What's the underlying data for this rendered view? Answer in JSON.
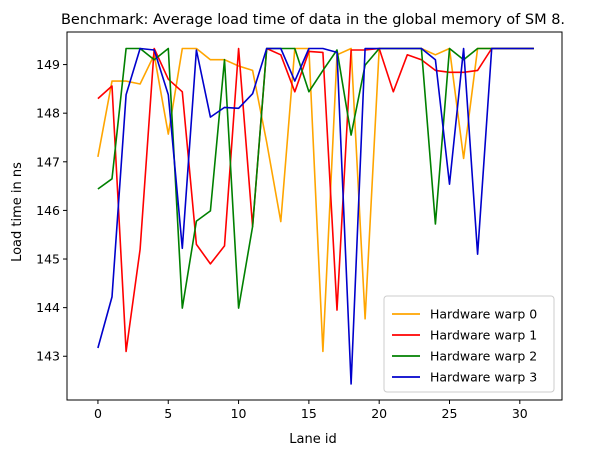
{
  "chart_data": {
    "type": "line",
    "title": "Benchmark: Average load time of data in the global memory of SM 8.",
    "xlabel": "Lane id",
    "ylabel": "Load time in ns",
    "xlim": [
      -2.2,
      33.0
    ],
    "ylim": [
      142.1,
      149.67
    ],
    "xticks": [
      0,
      5,
      10,
      15,
      20,
      25,
      30
    ],
    "yticks": [
      143,
      144,
      145,
      146,
      147,
      148,
      149
    ],
    "grid": false,
    "legend_position": "lower right",
    "series": [
      {
        "name": "Hardware warp 0",
        "color": "#FFA500",
        "x": [
          0,
          1,
          2,
          3,
          4,
          5,
          6,
          7,
          8,
          9,
          10,
          11,
          12,
          13,
          14,
          15,
          16,
          17,
          18,
          19,
          20,
          21,
          22,
          23,
          24,
          25,
          26,
          27,
          28,
          29,
          30,
          31
        ],
        "y": [
          147.1,
          148.66,
          148.66,
          148.6,
          149.2,
          147.57,
          149.33,
          149.33,
          149.1,
          149.1,
          148.97,
          148.88,
          147.4,
          145.77,
          149.33,
          149.33,
          143.1,
          149.2,
          149.33,
          143.77,
          149.33,
          149.33,
          149.33,
          149.33,
          149.2,
          149.33,
          147.07,
          149.33,
          149.33,
          149.33,
          149.33,
          149.33
        ]
      },
      {
        "name": "Hardware warp 1",
        "color": "#FF0000",
        "x": [
          0,
          1,
          2,
          3,
          4,
          5,
          6,
          7,
          8,
          9,
          10,
          11,
          12,
          13,
          14,
          15,
          16,
          17,
          18,
          19,
          20,
          21,
          22,
          23,
          24,
          25,
          26,
          27,
          28,
          29,
          30,
          31
        ],
        "y": [
          148.3,
          148.56,
          143.1,
          145.2,
          149.33,
          148.7,
          148.44,
          145.3,
          144.9,
          145.27,
          149.33,
          145.67,
          149.33,
          149.2,
          148.44,
          149.27,
          149.25,
          143.95,
          149.3,
          149.3,
          149.33,
          148.44,
          149.2,
          149.1,
          148.88,
          148.84,
          148.84,
          148.88,
          149.33,
          149.33,
          149.33,
          149.33
        ]
      },
      {
        "name": "Hardware warp 2",
        "color": "#008000",
        "x": [
          0,
          1,
          2,
          3,
          4,
          5,
          6,
          7,
          8,
          9,
          10,
          11,
          12,
          13,
          14,
          15,
          16,
          17,
          18,
          19,
          20,
          21,
          22,
          23,
          24,
          25,
          26,
          27,
          28,
          29,
          30,
          31
        ],
        "y": [
          146.44,
          146.65,
          149.33,
          149.33,
          149.1,
          149.33,
          143.99,
          145.78,
          145.99,
          149.1,
          143.99,
          145.67,
          149.33,
          149.33,
          149.33,
          148.44,
          148.88,
          149.3,
          147.55,
          148.99,
          149.33,
          149.33,
          149.33,
          149.33,
          145.72,
          149.33,
          149.1,
          149.33,
          149.33,
          149.33,
          149.33,
          149.33
        ]
      },
      {
        "name": "Hardware warp 3",
        "color": "#0000CC",
        "x": [
          0,
          1,
          2,
          3,
          4,
          5,
          6,
          7,
          8,
          9,
          10,
          11,
          12,
          13,
          14,
          15,
          16,
          17,
          18,
          19,
          20,
          21,
          22,
          23,
          24,
          25,
          26,
          27,
          28,
          29,
          30,
          31
        ],
        "y": [
          143.17,
          144.22,
          148.38,
          149.33,
          149.3,
          148.38,
          145.22,
          149.3,
          147.92,
          148.12,
          148.1,
          148.4,
          149.33,
          149.33,
          148.66,
          149.33,
          149.33,
          149.25,
          142.43,
          149.33,
          149.33,
          149.33,
          149.33,
          149.33,
          149.1,
          146.54,
          149.33,
          145.1,
          149.33,
          149.33,
          149.33,
          149.33
        ]
      }
    ]
  }
}
